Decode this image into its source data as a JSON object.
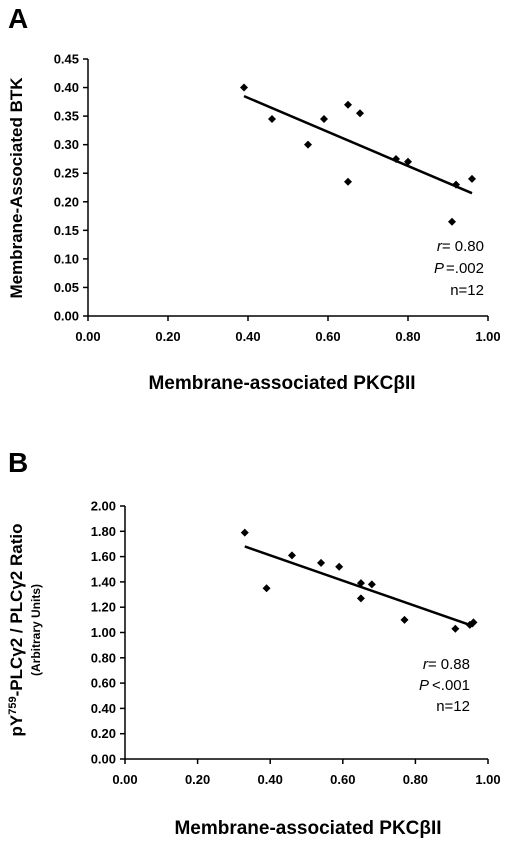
{
  "chart_data": [
    {
      "panel": "A",
      "type": "scatter",
      "xlabel": "Membrane-associated PKCβII",
      "ylabel": "Membrane-Associated BTK",
      "xlim": [
        0,
        1.0
      ],
      "ylim": [
        0,
        0.45
      ],
      "xticks": [
        "0.00",
        "0.20",
        "0.40",
        "0.60",
        "0.80",
        "1.00"
      ],
      "yticks": [
        "0.00",
        "0.05",
        "0.10",
        "0.15",
        "0.20",
        "0.25",
        "0.30",
        "0.35",
        "0.40",
        "0.45"
      ],
      "points": [
        {
          "x": 0.39,
          "y": 0.4
        },
        {
          "x": 0.46,
          "y": 0.345
        },
        {
          "x": 0.55,
          "y": 0.3
        },
        {
          "x": 0.59,
          "y": 0.345
        },
        {
          "x": 0.65,
          "y": 0.37
        },
        {
          "x": 0.68,
          "y": 0.355
        },
        {
          "x": 0.65,
          "y": 0.235
        },
        {
          "x": 0.77,
          "y": 0.275
        },
        {
          "x": 0.8,
          "y": 0.27
        },
        {
          "x": 0.91,
          "y": 0.165
        },
        {
          "x": 0.92,
          "y": 0.23
        },
        {
          "x": 0.96,
          "y": 0.24
        }
      ],
      "trendline": {
        "x": [
          0.39,
          0.96
        ],
        "y": [
          0.385,
          0.215
        ]
      },
      "stats": {
        "r_label": "r",
        "r_value": "= 0.80",
        "p_label": "P",
        "p_value": "=.002",
        "n": "n=12"
      }
    },
    {
      "panel": "B",
      "type": "scatter",
      "xlabel": "Membrane-associated PKCβII",
      "ylabel_main": "pY759-PLCγ2 / PLCγ2 Ratio",
      "ylabel_pY": "pY",
      "ylabel_sup": "759",
      "ylabel_rest": "-PLCγ2 / PLCγ2 Ratio",
      "ylabel_sub": "(Arbitrary Units)",
      "xlim": [
        0,
        1.0
      ],
      "ylim": [
        0,
        2.0
      ],
      "xticks": [
        "0.00",
        "0.20",
        "0.40",
        "0.60",
        "0.80",
        "1.00"
      ],
      "yticks": [
        "0.00",
        "0.20",
        "0.40",
        "0.60",
        "0.80",
        "1.00",
        "1.20",
        "1.40",
        "1.60",
        "1.80",
        "2.00"
      ],
      "points": [
        {
          "x": 0.33,
          "y": 1.79
        },
        {
          "x": 0.39,
          "y": 1.35
        },
        {
          "x": 0.46,
          "y": 1.61
        },
        {
          "x": 0.54,
          "y": 1.55
        },
        {
          "x": 0.59,
          "y": 1.52
        },
        {
          "x": 0.65,
          "y": 1.39
        },
        {
          "x": 0.65,
          "y": 1.27
        },
        {
          "x": 0.68,
          "y": 1.38
        },
        {
          "x": 0.77,
          "y": 1.1
        },
        {
          "x": 0.91,
          "y": 1.03
        },
        {
          "x": 0.95,
          "y": 1.06
        },
        {
          "x": 0.96,
          "y": 1.08
        }
      ],
      "trendline": {
        "x": [
          0.33,
          0.96
        ],
        "y": [
          1.68,
          1.05
        ]
      },
      "stats": {
        "r_label": "r",
        "r_value": "= 0.88",
        "p_label": "P",
        "p_value": "<.001",
        "n": "n=12"
      }
    }
  ]
}
